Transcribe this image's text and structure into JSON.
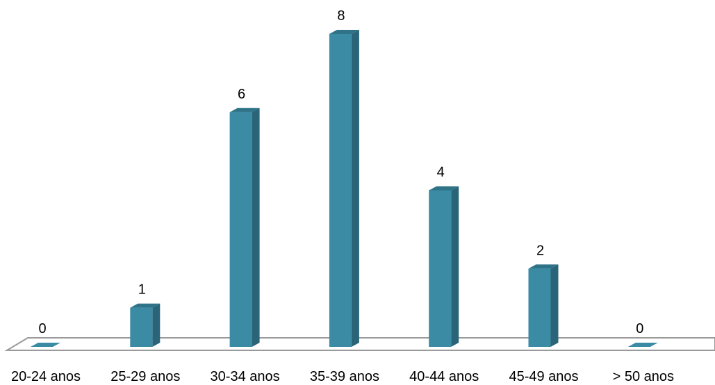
{
  "chart_data": {
    "type": "bar",
    "style": "3d-column",
    "categories": [
      "20-24 anos",
      "25-29 anos",
      "30-34 anos",
      "35-39 anos",
      "40-44 anos",
      "45-49 anos",
      "> 50 anos"
    ],
    "values": [
      0,
      1,
      6,
      8,
      4,
      2,
      0
    ],
    "data_labels": [
      "0",
      "1",
      "6",
      "8",
      "4",
      "2",
      "0"
    ],
    "ylim": [
      0,
      8
    ],
    "grid": false,
    "legend": "none",
    "colors": {
      "bar_front": "#3B8BA5",
      "bar_side": "#2A6479",
      "bar_top": "#2F7388",
      "floor_stroke": "#9A9A9A"
    }
  }
}
